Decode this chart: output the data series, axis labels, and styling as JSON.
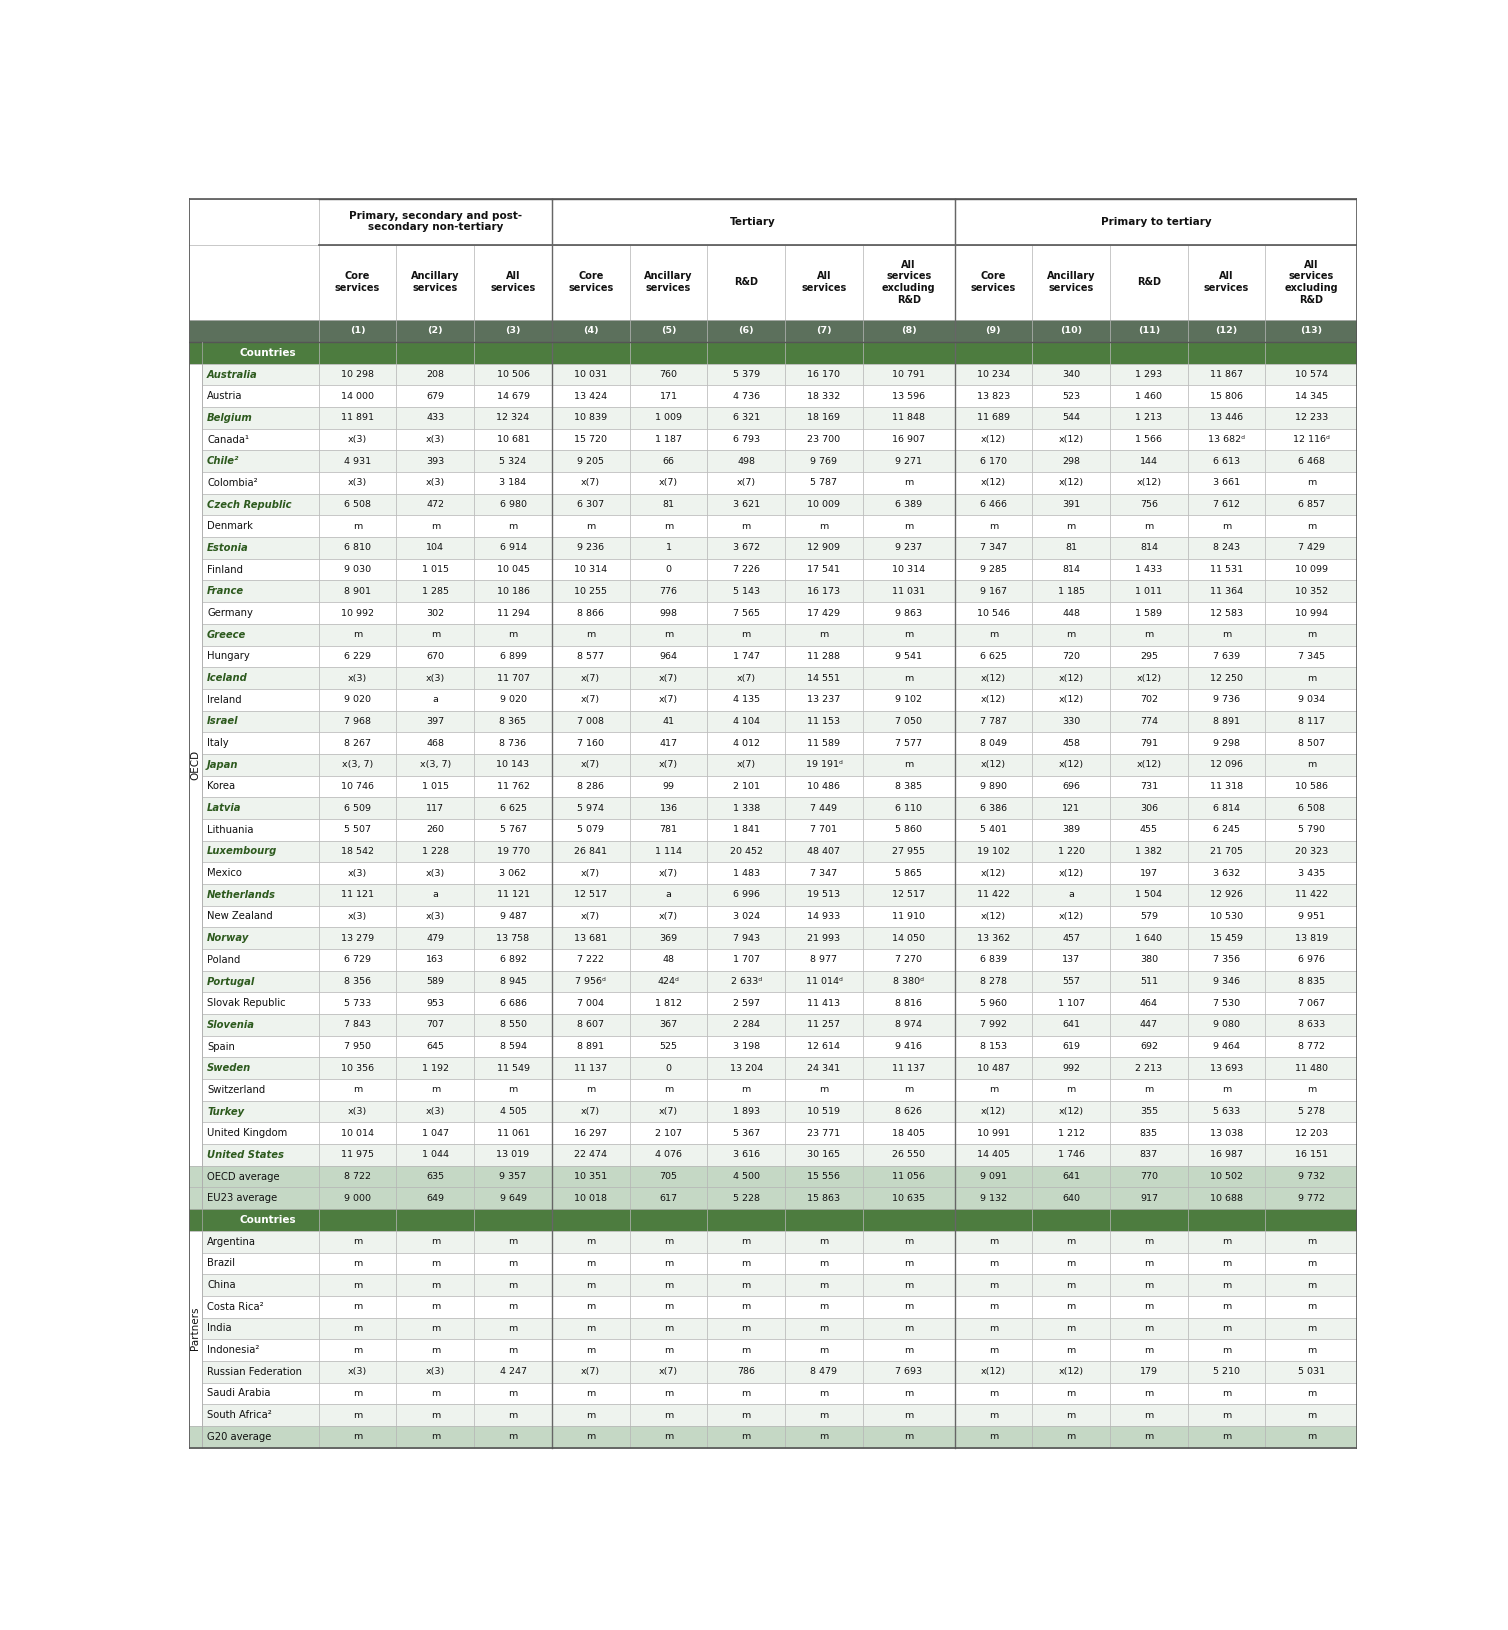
{
  "col_headers": [
    "Core\nservices",
    "Ancillary\nservices",
    "All\nservices",
    "Core\nservices",
    "Ancillary\nservices",
    "R&D",
    "All\nservices",
    "All\nservices\nexcluding\nR&D",
    "Core\nservices",
    "Ancillary\nservices",
    "R&D",
    "All\nservices",
    "All\nservices\nexcluding\nR&D"
  ],
  "col_nums": [
    "(1)",
    "(2)",
    "(3)",
    "(4)",
    "(5)",
    "(6)",
    "(7)",
    "(8)",
    "(9)",
    "(10)",
    "(11)",
    "(12)",
    "(13)"
  ],
  "oecd_label": "OECD",
  "partners_label": "Partners",
  "countries_header": "Countries",
  "rows": [
    {
      "name": "Australia",
      "bold": true,
      "values": [
        "10 298",
        "208",
        "10 506",
        "10 031",
        "760",
        "5 379",
        "16 170",
        "10 791",
        "10 234",
        "340",
        "1 293",
        "11 867",
        "10 574"
      ]
    },
    {
      "name": "Austria",
      "bold": false,
      "values": [
        "14 000",
        "679",
        "14 679",
        "13 424",
        "171",
        "4 736",
        "18 332",
        "13 596",
        "13 823",
        "523",
        "1 460",
        "15 806",
        "14 345"
      ]
    },
    {
      "name": "Belgium",
      "bold": true,
      "values": [
        "11 891",
        "433",
        "12 324",
        "10 839",
        "1 009",
        "6 321",
        "18 169",
        "11 848",
        "11 689",
        "544",
        "1 213",
        "13 446",
        "12 233"
      ]
    },
    {
      "name": "Canada¹",
      "bold": false,
      "values": [
        "x(3)",
        "x(3)",
        "10 681",
        "15 720",
        "1 187",
        "6 793",
        "23 700",
        "16 907",
        "x(12)",
        "x(12)",
        "1 566",
        "13 682ᵈ",
        "12 116ᵈ"
      ]
    },
    {
      "name": "Chile²",
      "bold": true,
      "values": [
        "4 931",
        "393",
        "5 324",
        "9 205",
        "66",
        "498",
        "9 769",
        "9 271",
        "6 170",
        "298",
        "144",
        "6 613",
        "6 468"
      ]
    },
    {
      "name": "Colombia²",
      "bold": false,
      "values": [
        "x(3)",
        "x(3)",
        "3 184",
        "x(7)",
        "x(7)",
        "x(7)",
        "5 787",
        "m",
        "x(12)",
        "x(12)",
        "x(12)",
        "3 661",
        "m"
      ]
    },
    {
      "name": "Czech Republic",
      "bold": true,
      "values": [
        "6 508",
        "472",
        "6 980",
        "6 307",
        "81",
        "3 621",
        "10 009",
        "6 389",
        "6 466",
        "391",
        "756",
        "7 612",
        "6 857"
      ]
    },
    {
      "name": "Denmark",
      "bold": false,
      "values": [
        "m",
        "m",
        "m",
        "m",
        "m",
        "m",
        "m",
        "m",
        "m",
        "m",
        "m",
        "m",
        "m"
      ]
    },
    {
      "name": "Estonia",
      "bold": true,
      "values": [
        "6 810",
        "104",
        "6 914",
        "9 236",
        "1",
        "3 672",
        "12 909",
        "9 237",
        "7 347",
        "81",
        "814",
        "8 243",
        "7 429"
      ]
    },
    {
      "name": "Finland",
      "bold": false,
      "values": [
        "9 030",
        "1 015",
        "10 045",
        "10 314",
        "0",
        "7 226",
        "17 541",
        "10 314",
        "9 285",
        "814",
        "1 433",
        "11 531",
        "10 099"
      ]
    },
    {
      "name": "France",
      "bold": true,
      "values": [
        "8 901",
        "1 285",
        "10 186",
        "10 255",
        "776",
        "5 143",
        "16 173",
        "11 031",
        "9 167",
        "1 185",
        "1 011",
        "11 364",
        "10 352"
      ]
    },
    {
      "name": "Germany",
      "bold": false,
      "values": [
        "10 992",
        "302",
        "11 294",
        "8 866",
        "998",
        "7 565",
        "17 429",
        "9 863",
        "10 546",
        "448",
        "1 589",
        "12 583",
        "10 994"
      ]
    },
    {
      "name": "Greece",
      "bold": true,
      "values": [
        "m",
        "m",
        "m",
        "m",
        "m",
        "m",
        "m",
        "m",
        "m",
        "m",
        "m",
        "m",
        "m"
      ]
    },
    {
      "name": "Hungary",
      "bold": false,
      "values": [
        "6 229",
        "670",
        "6 899",
        "8 577",
        "964",
        "1 747",
        "11 288",
        "9 541",
        "6 625",
        "720",
        "295",
        "7 639",
        "7 345"
      ]
    },
    {
      "name": "Iceland",
      "bold": true,
      "values": [
        "x(3)",
        "x(3)",
        "11 707",
        "x(7)",
        "x(7)",
        "x(7)",
        "14 551",
        "m",
        "x(12)",
        "x(12)",
        "x(12)",
        "12 250",
        "m"
      ]
    },
    {
      "name": "Ireland",
      "bold": false,
      "values": [
        "9 020",
        "a",
        "9 020",
        "x(7)",
        "x(7)",
        "4 135",
        "13 237",
        "9 102",
        "x(12)",
        "x(12)",
        "702",
        "9 736",
        "9 034"
      ]
    },
    {
      "name": "Israel",
      "bold": true,
      "values": [
        "7 968",
        "397",
        "8 365",
        "7 008",
        "41",
        "4 104",
        "11 153",
        "7 050",
        "7 787",
        "330",
        "774",
        "8 891",
        "8 117"
      ]
    },
    {
      "name": "Italy",
      "bold": false,
      "values": [
        "8 267",
        "468",
        "8 736",
        "7 160",
        "417",
        "4 012",
        "11 589",
        "7 577",
        "8 049",
        "458",
        "791",
        "9 298",
        "8 507"
      ]
    },
    {
      "name": "Japan",
      "bold": true,
      "values": [
        "x(3, 7)",
        "x(3, 7)",
        "10 143",
        "x(7)",
        "x(7)",
        "x(7)",
        "19 191ᵈ",
        "m",
        "x(12)",
        "x(12)",
        "x(12)",
        "12 096",
        "m"
      ]
    },
    {
      "name": "Korea",
      "bold": false,
      "values": [
        "10 746",
        "1 015",
        "11 762",
        "8 286",
        "99",
        "2 101",
        "10 486",
        "8 385",
        "9 890",
        "696",
        "731",
        "11 318",
        "10 586"
      ]
    },
    {
      "name": "Latvia",
      "bold": true,
      "values": [
        "6 509",
        "117",
        "6 625",
        "5 974",
        "136",
        "1 338",
        "7 449",
        "6 110",
        "6 386",
        "121",
        "306",
        "6 814",
        "6 508"
      ]
    },
    {
      "name": "Lithuania",
      "bold": false,
      "values": [
        "5 507",
        "260",
        "5 767",
        "5 079",
        "781",
        "1 841",
        "7 701",
        "5 860",
        "5 401",
        "389",
        "455",
        "6 245",
        "5 790"
      ]
    },
    {
      "name": "Luxembourg",
      "bold": true,
      "values": [
        "18 542",
        "1 228",
        "19 770",
        "26 841",
        "1 114",
        "20 452",
        "48 407",
        "27 955",
        "19 102",
        "1 220",
        "1 382",
        "21 705",
        "20 323"
      ]
    },
    {
      "name": "Mexico",
      "bold": false,
      "values": [
        "x(3)",
        "x(3)",
        "3 062",
        "x(7)",
        "x(7)",
        "1 483",
        "7 347",
        "5 865",
        "x(12)",
        "x(12)",
        "197",
        "3 632",
        "3 435"
      ]
    },
    {
      "name": "Netherlands",
      "bold": true,
      "values": [
        "11 121",
        "a",
        "11 121",
        "12 517",
        "a",
        "6 996",
        "19 513",
        "12 517",
        "11 422",
        "a",
        "1 504",
        "12 926",
        "11 422"
      ]
    },
    {
      "name": "New Zealand",
      "bold": false,
      "values": [
        "x(3)",
        "x(3)",
        "9 487",
        "x(7)",
        "x(7)",
        "3 024",
        "14 933",
        "11 910",
        "x(12)",
        "x(12)",
        "579",
        "10 530",
        "9 951"
      ]
    },
    {
      "name": "Norway",
      "bold": true,
      "values": [
        "13 279",
        "479",
        "13 758",
        "13 681",
        "369",
        "7 943",
        "21 993",
        "14 050",
        "13 362",
        "457",
        "1 640",
        "15 459",
        "13 819"
      ]
    },
    {
      "name": "Poland",
      "bold": false,
      "values": [
        "6 729",
        "163",
        "6 892",
        "7 222",
        "48",
        "1 707",
        "8 977",
        "7 270",
        "6 839",
        "137",
        "380",
        "7 356",
        "6 976"
      ]
    },
    {
      "name": "Portugal",
      "bold": true,
      "values": [
        "8 356",
        "589",
        "8 945",
        "7 956ᵈ",
        "424ᵈ",
        "2 633ᵈ",
        "11 014ᵈ",
        "8 380ᵈ",
        "8 278",
        "557",
        "511",
        "9 346",
        "8 835"
      ]
    },
    {
      "name": "Slovak Republic",
      "bold": false,
      "values": [
        "5 733",
        "953",
        "6 686",
        "7 004",
        "1 812",
        "2 597",
        "11 413",
        "8 816",
        "5 960",
        "1 107",
        "464",
        "7 530",
        "7 067"
      ]
    },
    {
      "name": "Slovenia",
      "bold": true,
      "values": [
        "7 843",
        "707",
        "8 550",
        "8 607",
        "367",
        "2 284",
        "11 257",
        "8 974",
        "7 992",
        "641",
        "447",
        "9 080",
        "8 633"
      ]
    },
    {
      "name": "Spain",
      "bold": false,
      "values": [
        "7 950",
        "645",
        "8 594",
        "8 891",
        "525",
        "3 198",
        "12 614",
        "9 416",
        "8 153",
        "619",
        "692",
        "9 464",
        "8 772"
      ]
    },
    {
      "name": "Sweden",
      "bold": true,
      "values": [
        "10 356",
        "1 192",
        "11 549",
        "11 137",
        "0",
        "13 204",
        "24 341",
        "11 137",
        "10 487",
        "992",
        "2 213",
        "13 693",
        "11 480"
      ]
    },
    {
      "name": "Switzerland",
      "bold": false,
      "values": [
        "m",
        "m",
        "m",
        "m",
        "m",
        "m",
        "m",
        "m",
        "m",
        "m",
        "m",
        "m",
        "m"
      ]
    },
    {
      "name": "Turkey",
      "bold": true,
      "values": [
        "x(3)",
        "x(3)",
        "4 505",
        "x(7)",
        "x(7)",
        "1 893",
        "10 519",
        "8 626",
        "x(12)",
        "x(12)",
        "355",
        "5 633",
        "5 278"
      ]
    },
    {
      "name": "United Kingdom",
      "bold": false,
      "values": [
        "10 014",
        "1 047",
        "11 061",
        "16 297",
        "2 107",
        "5 367",
        "23 771",
        "18 405",
        "10 991",
        "1 212",
        "835",
        "13 038",
        "12 203"
      ]
    },
    {
      "name": "United States",
      "bold": true,
      "values": [
        "11 975",
        "1 044",
        "13 019",
        "22 474",
        "4 076",
        "3 616",
        "30 165",
        "26 550",
        "14 405",
        "1 746",
        "837",
        "16 987",
        "16 151"
      ]
    }
  ],
  "avg_rows": [
    {
      "name": "OECD average",
      "values": [
        "8 722",
        "635",
        "9 357",
        "10 351",
        "705",
        "4 500",
        "15 556",
        "11 056",
        "9 091",
        "641",
        "770",
        "10 502",
        "9 732"
      ]
    },
    {
      "name": "EU23 average",
      "values": [
        "9 000",
        "649",
        "9 649",
        "10 018",
        "617",
        "5 228",
        "15 863",
        "10 635",
        "9 132",
        "640",
        "917",
        "10 688",
        "9 772"
      ]
    }
  ],
  "partner_rows": [
    {
      "name": "Argentina",
      "values": [
        "m",
        "m",
        "m",
        "m",
        "m",
        "m",
        "m",
        "m",
        "m",
        "m",
        "m",
        "m",
        "m"
      ]
    },
    {
      "name": "Brazil",
      "values": [
        "m",
        "m",
        "m",
        "m",
        "m",
        "m",
        "m",
        "m",
        "m",
        "m",
        "m",
        "m",
        "m"
      ]
    },
    {
      "name": "China",
      "values": [
        "m",
        "m",
        "m",
        "m",
        "m",
        "m",
        "m",
        "m",
        "m",
        "m",
        "m",
        "m",
        "m"
      ]
    },
    {
      "name": "Costa Rica²",
      "values": [
        "m",
        "m",
        "m",
        "m",
        "m",
        "m",
        "m",
        "m",
        "m",
        "m",
        "m",
        "m",
        "m"
      ]
    },
    {
      "name": "India",
      "values": [
        "m",
        "m",
        "m",
        "m",
        "m",
        "m",
        "m",
        "m",
        "m",
        "m",
        "m",
        "m",
        "m"
      ]
    },
    {
      "name": "Indonesia²",
      "values": [
        "m",
        "m",
        "m",
        "m",
        "m",
        "m",
        "m",
        "m",
        "m",
        "m",
        "m",
        "m",
        "m"
      ]
    },
    {
      "name": "Russian Federation",
      "values": [
        "x(3)",
        "x(3)",
        "4 247",
        "x(7)",
        "x(7)",
        "786",
        "8 479",
        "7 693",
        "x(12)",
        "x(12)",
        "179",
        "5 210",
        "5 031"
      ]
    },
    {
      "name": "Saudi Arabia",
      "values": [
        "m",
        "m",
        "m",
        "m",
        "m",
        "m",
        "m",
        "m",
        "m",
        "m",
        "m",
        "m",
        "m"
      ]
    },
    {
      "name": "South Africa²",
      "values": [
        "m",
        "m",
        "m",
        "m",
        "m",
        "m",
        "m",
        "m",
        "m",
        "m",
        "m",
        "m",
        "m"
      ]
    }
  ],
  "g20_row": {
    "name": "G20 average",
    "values": [
      "m",
      "m",
      "m",
      "m",
      "m",
      "m",
      "m",
      "m",
      "m",
      "m",
      "m",
      "m",
      "m"
    ]
  },
  "colors": {
    "section_green": "#4d7c3f",
    "col_num_bg": "#5c705c",
    "row_even_bg": "#eef3ee",
    "row_odd_bg": "#ffffff",
    "avg_row_bg": "#c5d8c5",
    "border_light": "#b0b0b0",
    "border_dark": "#888888",
    "green_text": "#2d5a1e",
    "normal_text": "#111111",
    "white": "#ffffff"
  }
}
